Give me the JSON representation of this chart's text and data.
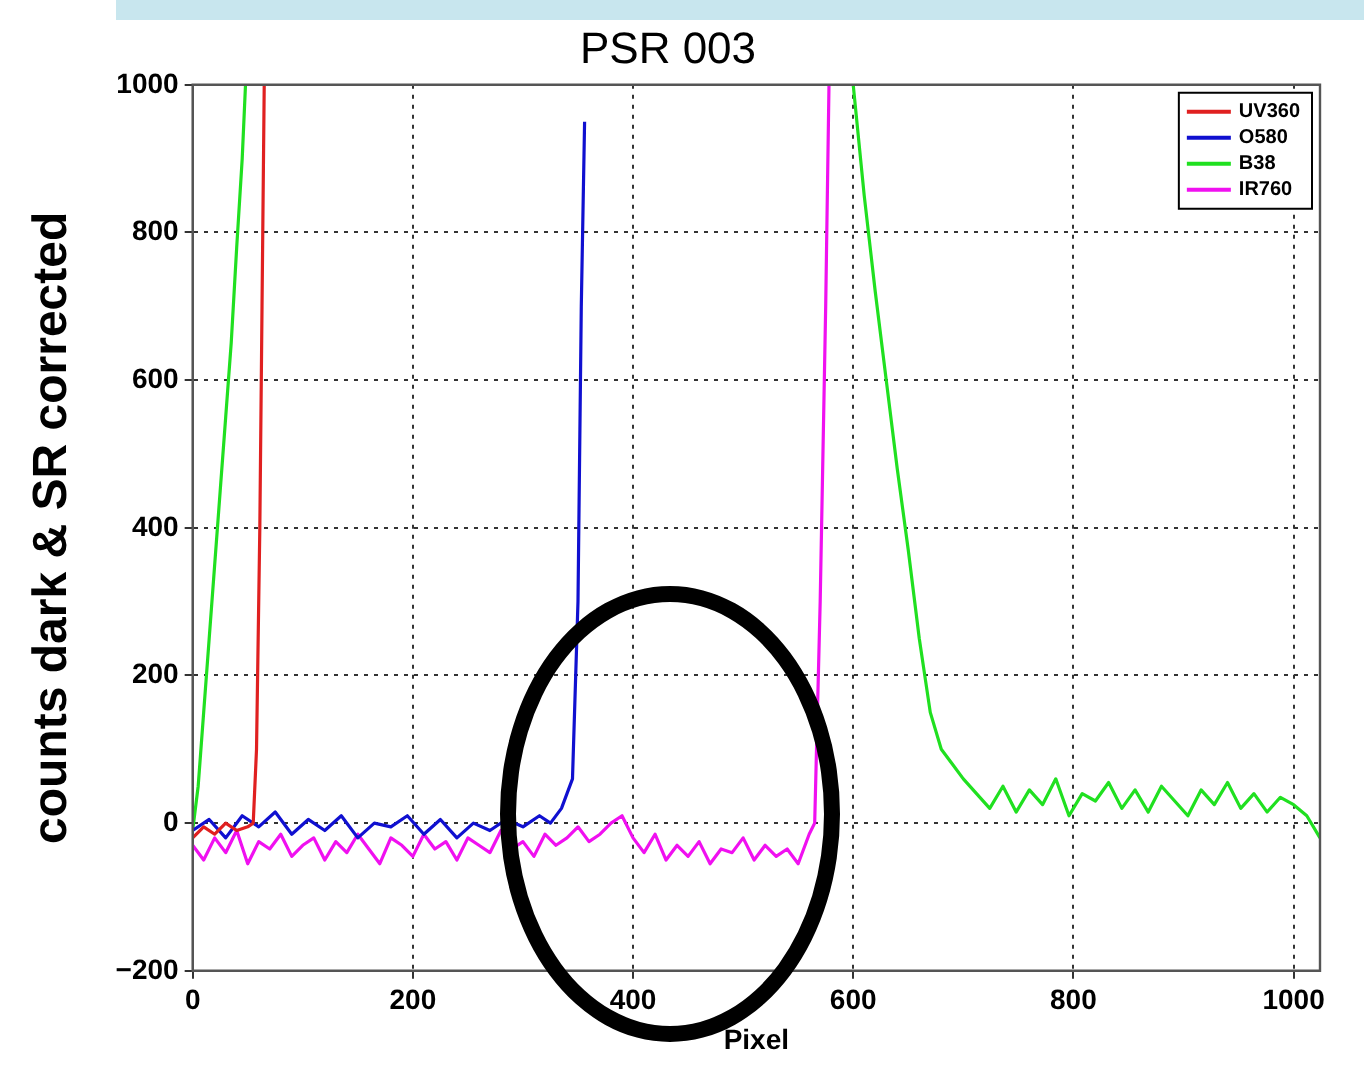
{
  "chart_data": {
    "type": "line",
    "title": "PSR 003",
    "xlabel": "Pixel",
    "ylabel": "counts dark & SR corrected",
    "xlim": [
      0,
      1024
    ],
    "xticks": [
      0,
      200,
      400,
      600,
      800,
      1000
    ],
    "ylim": [
      -200,
      1000
    ],
    "yticks": [
      {
        "value": -200,
        "label": "−200"
      },
      0,
      200,
      400,
      600,
      800,
      1000
    ],
    "grid": true,
    "legend": "top right",
    "marker": "none",
    "line_style": "solid",
    "series": [
      {
        "name": "UV360",
        "color": "#e02020",
        "x": [
          0,
          10,
          20,
          30,
          40,
          50,
          55,
          58,
          61,
          63,
          65
        ],
        "values": [
          -20,
          -5,
          -15,
          0,
          -10,
          -5,
          0,
          100,
          400,
          700,
          1000
        ]
      },
      {
        "name": "O580",
        "color": "#1010d0",
        "x": [
          0,
          15,
          30,
          45,
          60,
          75,
          90,
          105,
          120,
          135,
          150,
          165,
          180,
          195,
          210,
          225,
          240,
          255,
          270,
          285,
          300,
          315,
          325,
          335,
          340,
          345,
          350,
          353,
          356
        ],
        "values": [
          -10,
          5,
          -20,
          10,
          -5,
          15,
          -15,
          5,
          -10,
          10,
          -20,
          0,
          -5,
          10,
          -15,
          5,
          -20,
          0,
          -10,
          5,
          -5,
          10,
          0,
          20,
          40,
          60,
          300,
          700,
          950
        ]
      },
      {
        "name": "B38",
        "color": "#20e020",
        "x": [
          0,
          5,
          10,
          15,
          20,
          25,
          30,
          35,
          40,
          45,
          48,
          52,
          600,
          610,
          620,
          630,
          640,
          650,
          660,
          670,
          680,
          690,
          700,
          712,
          724,
          736,
          748,
          760,
          772,
          784,
          796,
          808,
          820,
          832,
          844,
          856,
          868,
          880,
          892,
          904,
          916,
          928,
          940,
          952,
          964,
          976,
          988,
          1000,
          1012,
          1024
        ],
        "values": [
          -10,
          50,
          150,
          250,
          350,
          450,
          550,
          650,
          780,
          900,
          1000,
          null,
          1000,
          850,
          720,
          600,
          480,
          370,
          250,
          150,
          100,
          80,
          60,
          40,
          20,
          50,
          15,
          45,
          25,
          60,
          10,
          40,
          30,
          55,
          20,
          45,
          15,
          50,
          30,
          10,
          45,
          25,
          55,
          20,
          40,
          15,
          35,
          25,
          10,
          -20
        ]
      },
      {
        "name": "IR760",
        "color": "#f010f0",
        "x": [
          0,
          10,
          20,
          30,
          40,
          50,
          60,
          70,
          80,
          90,
          100,
          110,
          120,
          130,
          140,
          150,
          160,
          170,
          180,
          190,
          200,
          210,
          220,
          230,
          240,
          250,
          260,
          270,
          280,
          290,
          300,
          310,
          320,
          330,
          340,
          350,
          360,
          370,
          380,
          390,
          400,
          410,
          420,
          430,
          440,
          450,
          460,
          470,
          480,
          490,
          500,
          510,
          520,
          530,
          540,
          550,
          560,
          565,
          570,
          575,
          578
        ],
        "values": [
          -30,
          -50,
          -20,
          -40,
          -10,
          -55,
          -25,
          -35,
          -15,
          -45,
          -30,
          -20,
          -50,
          -25,
          -40,
          -15,
          -35,
          -55,
          -20,
          -30,
          -45,
          -15,
          -35,
          -25,
          -50,
          -20,
          -30,
          -40,
          -10,
          -35,
          -25,
          -45,
          -15,
          -30,
          -20,
          -5,
          -25,
          -15,
          0,
          10,
          -20,
          -40,
          -15,
          -50,
          -30,
          -45,
          -25,
          -55,
          -35,
          -40,
          -20,
          -50,
          -30,
          -45,
          -35,
          -55,
          -15,
          0,
          300,
          700,
          1000
        ]
      }
    ]
  }
}
